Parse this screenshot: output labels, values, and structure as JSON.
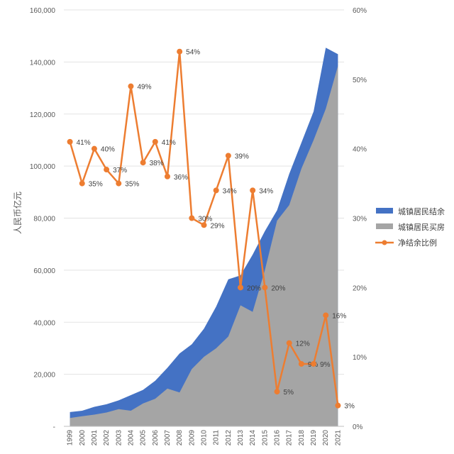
{
  "chart_data": {
    "type": "area",
    "categories": [
      "1999",
      "2000",
      "2001",
      "2002",
      "2003",
      "2004",
      "2005",
      "2006",
      "2007",
      "2008",
      "2009",
      "2010",
      "2011",
      "2012",
      "2013",
      "2014",
      "2015",
      "2016",
      "2017",
      "2018",
      "2019",
      "2020",
      "2021"
    ],
    "ylabel": "人民币亿元",
    "ylim": [
      0,
      160000
    ],
    "y_ticks": [
      "-",
      "20,000",
      "40,000",
      "60,000",
      "80,000",
      "100,000",
      "120,000",
      "140,000",
      "160,000"
    ],
    "y2lim": [
      0,
      60
    ],
    "y2_ticks": [
      "0%",
      "10%",
      "20%",
      "30%",
      "40%",
      "50%",
      "60%"
    ],
    "grid": true,
    "legend_position": "right",
    "series": [
      {
        "name": "城镇居民结余",
        "kind": "area",
        "axis": "left",
        "color": "#4472C4",
        "values": [
          5500,
          6000,
          7500,
          8500,
          10000,
          12000,
          14000,
          17500,
          22500,
          28000,
          31500,
          37500,
          46000,
          56500,
          58000,
          66000,
          75000,
          83000,
          97000,
          109000,
          121000,
          145500,
          143000
        ]
      },
      {
        "name": "城镇居民买房",
        "kind": "area",
        "axis": "left",
        "color": "#A5A5A5",
        "values": [
          3200,
          3900,
          4500,
          5300,
          6600,
          6000,
          8800,
          10600,
          14500,
          13000,
          22000,
          26700,
          30000,
          34500,
          46500,
          44000,
          60000,
          79000,
          85000,
          99000,
          110000,
          122000,
          138500
        ]
      },
      {
        "name": "净结余比例",
        "kind": "line",
        "axis": "right",
        "color": "#ED7D31",
        "values": [
          41,
          35,
          40,
          37,
          35,
          49,
          38,
          41,
          36,
          54,
          30,
          29,
          34,
          39,
          20,
          34,
          20,
          5,
          12,
          9,
          9,
          16,
          3
        ],
        "labels": [
          "41%",
          "35%",
          "40%",
          "37%",
          "35%",
          "49%",
          "38%",
          "41%",
          "36%",
          "54%",
          "30%",
          "29%",
          "34%",
          "39%",
          "20%",
          "34%",
          "20%",
          "5%",
          "12%",
          "9%",
          "9%",
          "16%",
          "3%"
        ]
      }
    ]
  }
}
